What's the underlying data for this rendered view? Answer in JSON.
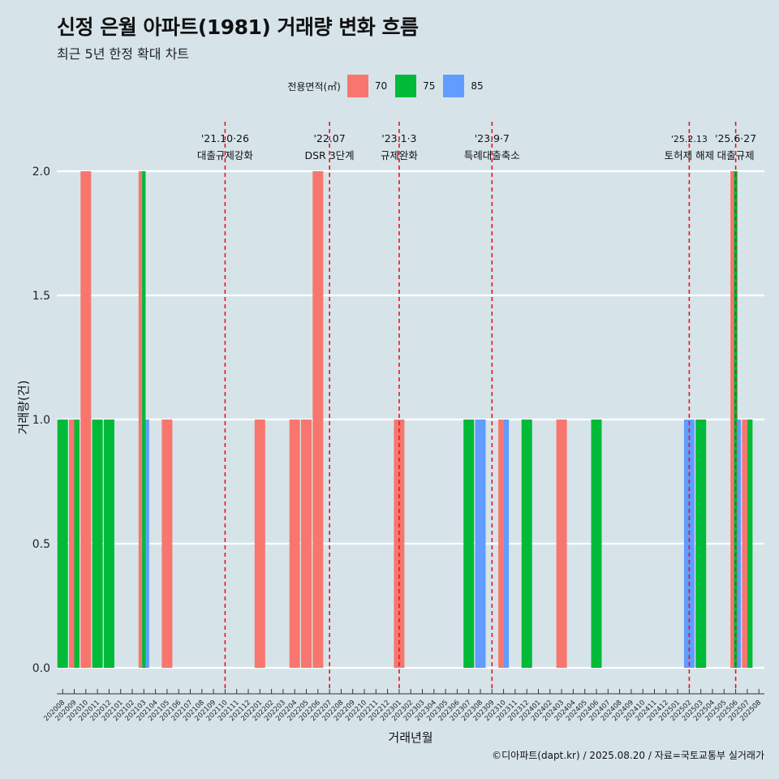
{
  "header": {
    "title": "신정 은월 아파트(1981) 거래량 변화 흐름",
    "subtitle": "최근 5년 한정 확대 차트"
  },
  "legend": {
    "title": "전용면적(㎡)",
    "items": [
      {
        "label": "70",
        "color": "#f8766d"
      },
      {
        "label": "75",
        "color": "#00ba38"
      },
      {
        "label": "85",
        "color": "#619cff"
      }
    ]
  },
  "caption": "©디아파트(dapt.kr) / 2025.08.20 / 자료=국토교통부 실거래가",
  "chart_data": {
    "type": "bar",
    "xlabel": "거래년월",
    "ylabel": "거래량(건)",
    "ylim": [
      0,
      2
    ],
    "yticks": [
      "0.0",
      "0.5",
      "1.0",
      "1.5",
      "2.0"
    ],
    "grid": true,
    "legend_position": "top",
    "categories": [
      "202008",
      "202009",
      "202010",
      "202011",
      "202012",
      "202101",
      "202102",
      "202103",
      "202104",
      "202105",
      "202106",
      "202107",
      "202108",
      "202109",
      "202110",
      "202111",
      "202112",
      "202201",
      "202202",
      "202203",
      "202204",
      "202205",
      "202206",
      "202207",
      "202208",
      "202209",
      "202210",
      "202211",
      "202212",
      "202301",
      "202302",
      "202303",
      "202304",
      "202305",
      "202306",
      "202307",
      "202308",
      "202309",
      "202310",
      "202311",
      "202312",
      "202401",
      "202402",
      "202403",
      "202404",
      "202405",
      "202406",
      "202407",
      "202408",
      "202409",
      "202410",
      "202411",
      "202412",
      "202501",
      "202502",
      "202503",
      "202504",
      "202505",
      "202506",
      "202507",
      "202508"
    ],
    "bars": [
      {
        "month": "202008",
        "series": "75",
        "value": 1
      },
      {
        "month": "202009",
        "series": "70",
        "value": 1
      },
      {
        "month": "202009",
        "series": "75",
        "value": 1
      },
      {
        "month": "202010",
        "series": "70",
        "value": 2
      },
      {
        "month": "202011",
        "series": "75",
        "value": 1
      },
      {
        "month": "202012",
        "series": "75",
        "value": 1
      },
      {
        "month": "202103",
        "series": "70",
        "value": 2
      },
      {
        "month": "202103",
        "series": "75",
        "value": 2
      },
      {
        "month": "202103",
        "series": "85",
        "value": 1
      },
      {
        "month": "202105",
        "series": "70",
        "value": 1
      },
      {
        "month": "202201",
        "series": "70",
        "value": 1
      },
      {
        "month": "202204",
        "series": "70",
        "value": 1
      },
      {
        "month": "202205",
        "series": "70",
        "value": 1
      },
      {
        "month": "202206",
        "series": "70",
        "value": 2
      },
      {
        "month": "202301",
        "series": "70",
        "value": 1
      },
      {
        "month": "202307",
        "series": "75",
        "value": 1
      },
      {
        "month": "202308",
        "series": "85",
        "value": 1
      },
      {
        "month": "202310",
        "series": "70",
        "value": 1
      },
      {
        "month": "202310",
        "series": "85",
        "value": 1
      },
      {
        "month": "202312",
        "series": "75",
        "value": 1
      },
      {
        "month": "202403",
        "series": "70",
        "value": 1
      },
      {
        "month": "202406",
        "series": "75",
        "value": 1
      },
      {
        "month": "202502",
        "series": "85",
        "value": 1
      },
      {
        "month": "202503",
        "series": "75",
        "value": 1
      },
      {
        "month": "202506",
        "series": "70",
        "value": 2
      },
      {
        "month": "202506",
        "series": "75",
        "value": 2
      },
      {
        "month": "202506",
        "series": "85",
        "value": 1
      },
      {
        "month": "202507",
        "series": "70",
        "value": 1
      },
      {
        "month": "202507",
        "series": "75",
        "value": 1
      }
    ],
    "events": [
      {
        "month": "202110",
        "date": "'21.10·26",
        "label": "대출규제강화"
      },
      {
        "month": "202207",
        "date": "'22.07",
        "label": "DSR 3단계"
      },
      {
        "month": "202301",
        "date": "'23.1·3",
        "label": "규제완화"
      },
      {
        "month": "202309",
        "date": "'23.9·7",
        "label": "특례대출축소"
      },
      {
        "month": "202502",
        "date": "'25.2.13",
        "label": "토허제 해제"
      },
      {
        "month": "202506",
        "date": "'25.6·27",
        "label": "대출규제"
      }
    ],
    "event_line_color": "#e8141b"
  }
}
